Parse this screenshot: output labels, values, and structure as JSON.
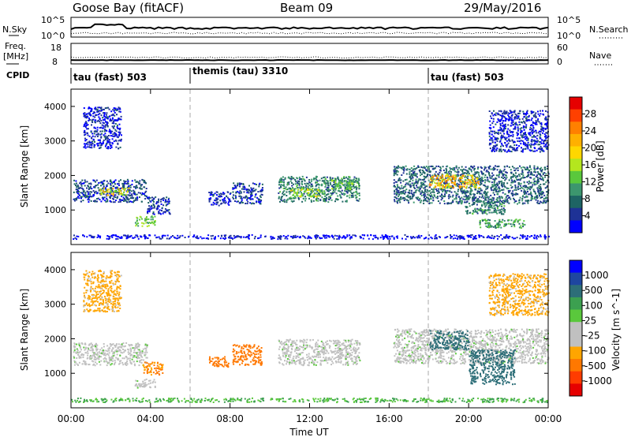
{
  "header": {
    "station": "Goose Bay (fitACF)",
    "beam": "Beam 09",
    "date": "29/May/2016"
  },
  "noise_panel": {
    "left_label": "N.Sky",
    "right_label": "N.Search",
    "left_ticks": [
      "10^5",
      "10^0"
    ],
    "right_ticks": [
      "10^5",
      "10^0"
    ]
  },
  "freq_panel": {
    "left_label_1": "Freq.",
    "left_label_2": "[MHz]",
    "right_label": "Nave",
    "left_ticks": [
      "18",
      "8"
    ],
    "right_ticks": [
      "60",
      "0"
    ]
  },
  "cpid": {
    "label": "CPID",
    "segments": [
      {
        "label": "tau (fast) 503",
        "start_hour": 0
      },
      {
        "label": "themis (tau) 3310",
        "start_hour": 6
      },
      {
        "label": "tau (fast) 503",
        "start_hour": 18
      }
    ]
  },
  "power_panel": {
    "ylabel": "Slant Range [km]",
    "colorbar_label": "Power [dB]",
    "colorbar_ticks": [
      "28",
      "24",
      "20",
      "16",
      "12",
      "8",
      "4"
    ],
    "colorbar_colors": [
      "#e60000",
      "#ff4000",
      "#ff8000",
      "#ffb000",
      "#ffd700",
      "#b4e61e",
      "#5ac83c",
      "#3c966e",
      "#1e6464",
      "#1e3296",
      "#0000ff"
    ]
  },
  "velocity_panel": {
    "ylabel": "Slant Range [km]",
    "colorbar_label": "Velocity [m s^-1]",
    "colorbar_ticks": [
      "1000",
      "500",
      "100",
      "25",
      "-25",
      "-100",
      "-500",
      "-1000"
    ],
    "colorbar_colors": [
      "#0000ff",
      "#1e46a0",
      "#2d6e78",
      "#3ca050",
      "#5ac83c",
      "#c0c0c0",
      "#c0c0c0",
      "#ffa500",
      "#ff7800",
      "#ff3c00",
      "#e60000"
    ]
  },
  "x_axis": {
    "label": "Time UT",
    "ticks": [
      "00:00",
      "04:00",
      "08:00",
      "12:00",
      "16:00",
      "20:00",
      "00:00"
    ]
  },
  "chart_data": {
    "type": "heatmap",
    "xlabel": "Time UT",
    "xlim_hours": [
      0,
      24
    ],
    "ylabel": "Slant Range [km]",
    "ylim_km": [
      0,
      4500
    ],
    "ytick_values": [
      1000,
      2000,
      3000,
      4000
    ],
    "xtick_hours": [
      0,
      4,
      8,
      12,
      16,
      20,
      24
    ],
    "mode_change_hours": [
      6,
      18
    ],
    "power_patches": [
      {
        "t0": 0.1,
        "t1": 3.8,
        "r0": 1250,
        "r1": 1900,
        "power_db": 10
      },
      {
        "t0": 1.4,
        "t1": 2.9,
        "r0": 1450,
        "r1": 1650,
        "power_db": 22
      },
      {
        "t0": 0.6,
        "t1": 2.5,
        "r0": 2800,
        "r1": 4000,
        "power_db": 8
      },
      {
        "t0": 3.8,
        "t1": 5.0,
        "r0": 900,
        "r1": 1400,
        "power_db": 9
      },
      {
        "t0": 3.2,
        "t1": 4.2,
        "r0": 550,
        "r1": 850,
        "power_db": 18
      },
      {
        "t0": 6.9,
        "t1": 8.0,
        "r0": 1150,
        "r1": 1550,
        "power_db": 8
      },
      {
        "t0": 8.1,
        "t1": 9.6,
        "r0": 1200,
        "r1": 1800,
        "power_db": 10
      },
      {
        "t0": 10.4,
        "t1": 14.5,
        "r0": 1250,
        "r1": 2000,
        "power_db": 14
      },
      {
        "t0": 11.0,
        "t1": 12.6,
        "r0": 1400,
        "r1": 1650,
        "power_db": 20
      },
      {
        "t0": 13.0,
        "t1": 14.2,
        "r0": 1600,
        "r1": 1900,
        "power_db": 18
      },
      {
        "t0": 16.2,
        "t1": 24.0,
        "r0": 1200,
        "r1": 2300,
        "power_db": 12
      },
      {
        "t0": 18.0,
        "t1": 20.5,
        "r0": 1650,
        "r1": 2050,
        "power_db": 24
      },
      {
        "t0": 19.8,
        "t1": 21.8,
        "r0": 900,
        "r1": 1400,
        "power_db": 14
      },
      {
        "t0": 20.5,
        "t1": 22.8,
        "r0": 500,
        "r1": 750,
        "power_db": 16
      },
      {
        "t0": 21.0,
        "t1": 24.0,
        "r0": 2700,
        "r1": 3900,
        "power_db": 8
      },
      {
        "t0": 0.0,
        "t1": 24.0,
        "r0": 180,
        "r1": 300,
        "power_db": 6
      }
    ],
    "velocity_patches": [
      {
        "t0": 0.1,
        "t1": 3.8,
        "r0": 1250,
        "r1": 1900,
        "velocity": 0
      },
      {
        "t0": 0.6,
        "t1": 2.5,
        "r0": 2800,
        "r1": 4000,
        "velocity": -120
      },
      {
        "t0": 3.6,
        "t1": 4.6,
        "r0": 950,
        "r1": 1350,
        "velocity": -300
      },
      {
        "t0": 3.2,
        "t1": 4.2,
        "r0": 600,
        "r1": 850,
        "velocity": 0
      },
      {
        "t0": 6.9,
        "t1": 8.0,
        "r0": 1200,
        "r1": 1500,
        "velocity": -450
      },
      {
        "t0": 8.1,
        "t1": 9.6,
        "r0": 1250,
        "r1": 1850,
        "velocity": -350
      },
      {
        "t0": 10.4,
        "t1": 14.5,
        "r0": 1250,
        "r1": 2000,
        "velocity": 0
      },
      {
        "t0": 16.2,
        "t1": 24.0,
        "r0": 1300,
        "r1": 2300,
        "velocity": 0
      },
      {
        "t0": 18.0,
        "t1": 20.0,
        "r0": 1700,
        "r1": 2250,
        "velocity": 200
      },
      {
        "t0": 20.0,
        "t1": 22.3,
        "r0": 700,
        "r1": 1700,
        "velocity": 250
      },
      {
        "t0": 21.0,
        "t1": 24.0,
        "r0": 2700,
        "r1": 3900,
        "velocity": -120
      },
      {
        "t0": 0.0,
        "t1": 24.0,
        "r0": 180,
        "r1": 300,
        "velocity": 60
      }
    ]
  }
}
